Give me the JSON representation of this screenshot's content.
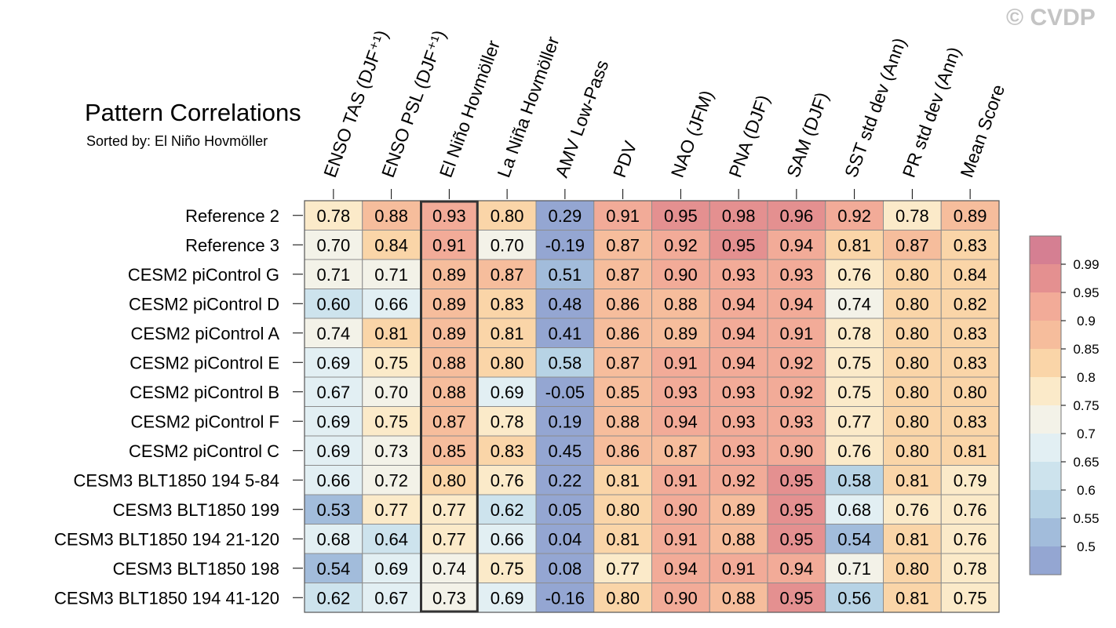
{
  "watermark": "© CVDP",
  "chart_data": {
    "type": "heatmap",
    "title": "Pattern Correlations",
    "subtitle": "Sorted by: El Niño Hovmöller",
    "columns": [
      "ENSO TAS (DJF⁺¹)",
      "ENSO PSL (DJF⁺¹)",
      "El Niño Hovmöller",
      "La Niña Hovmöller",
      "AMV Low-Pass",
      "PDV",
      "NAO (JFM)",
      "PNA (DJF)",
      "SAM (DJF)",
      "SST std dev (Ann)",
      "PR std dev (Ann)",
      "Mean Score"
    ],
    "rows": [
      "Reference 2",
      "Reference 3",
      "CESM2 piControl G",
      "CESM2 piControl D",
      "CESM2 piControl A",
      "CESM2 piControl E",
      "CESM2 piControl B",
      "CESM2 piControl F",
      "CESM2 piControl C",
      "CESM3 BLT1850 194 5-84",
      "CESM3 BLT1850 199",
      "CESM3 BLT1850 194 21-120",
      "CESM3 BLT1850 198",
      "CESM3 BLT1850 194 41-120"
    ],
    "values": [
      [
        "0.78",
        "0.88",
        "0.93",
        "0.80",
        "0.29",
        "0.91",
        "0.95",
        "0.98",
        "0.96",
        "0.92",
        "0.78",
        "0.89"
      ],
      [
        "0.70",
        "0.84",
        "0.91",
        "0.70",
        "-0.19",
        "0.87",
        "0.92",
        "0.95",
        "0.94",
        "0.81",
        "0.87",
        "0.83"
      ],
      [
        "0.71",
        "0.71",
        "0.89",
        "0.87",
        "0.51",
        "0.87",
        "0.90",
        "0.93",
        "0.93",
        "0.76",
        "0.80",
        "0.84"
      ],
      [
        "0.60",
        "0.66",
        "0.89",
        "0.83",
        "0.48",
        "0.86",
        "0.88",
        "0.94",
        "0.94",
        "0.74",
        "0.80",
        "0.82"
      ],
      [
        "0.74",
        "0.81",
        "0.89",
        "0.81",
        "0.41",
        "0.86",
        "0.89",
        "0.94",
        "0.91",
        "0.78",
        "0.80",
        "0.83"
      ],
      [
        "0.69",
        "0.75",
        "0.88",
        "0.80",
        "0.58",
        "0.87",
        "0.91",
        "0.94",
        "0.92",
        "0.75",
        "0.80",
        "0.83"
      ],
      [
        "0.67",
        "0.70",
        "0.88",
        "0.69",
        "-0.05",
        "0.85",
        "0.93",
        "0.93",
        "0.92",
        "0.75",
        "0.80",
        "0.80"
      ],
      [
        "0.69",
        "0.75",
        "0.87",
        "0.78",
        "0.19",
        "0.88",
        "0.94",
        "0.93",
        "0.93",
        "0.77",
        "0.80",
        "0.83"
      ],
      [
        "0.69",
        "0.73",
        "0.85",
        "0.83",
        "0.45",
        "0.86",
        "0.87",
        "0.93",
        "0.90",
        "0.76",
        "0.80",
        "0.81"
      ],
      [
        "0.66",
        "0.72",
        "0.80",
        "0.76",
        "0.22",
        "0.81",
        "0.91",
        "0.92",
        "0.95",
        "0.58",
        "0.81",
        "0.79"
      ],
      [
        "0.53",
        "0.77",
        "0.77",
        "0.62",
        "0.05",
        "0.80",
        "0.90",
        "0.89",
        "0.95",
        "0.68",
        "0.76",
        "0.76"
      ],
      [
        "0.68",
        "0.64",
        "0.77",
        "0.66",
        "0.04",
        "0.81",
        "0.91",
        "0.88",
        "0.95",
        "0.54",
        "0.81",
        "0.76"
      ],
      [
        "0.54",
        "0.69",
        "0.74",
        "0.75",
        "0.08",
        "0.77",
        "0.94",
        "0.91",
        "0.94",
        "0.71",
        "0.80",
        "0.78"
      ],
      [
        "0.62",
        "0.67",
        "0.73",
        "0.69",
        "-0.16",
        "0.80",
        "0.90",
        "0.88",
        "0.95",
        "0.56",
        "0.81",
        "0.75"
      ]
    ],
    "highlighted_column": "El Niño Hovmöller",
    "colorbar": {
      "labels": [
        "0.99",
        "0.95",
        "0.9",
        "0.85",
        "0.8",
        "0.75",
        "0.7",
        "0.65",
        "0.6",
        "0.55",
        "0.5"
      ],
      "colors": [
        "#d57f92",
        "#e49090",
        "#f2ab98",
        "#f6bd9c",
        "#fad5a8",
        "#fbeac9",
        "#f3f2e8",
        "#e2eff3",
        "#cde3ed",
        "#b7d3e5",
        "#a2bcdb",
        "#94a6d2"
      ]
    }
  }
}
